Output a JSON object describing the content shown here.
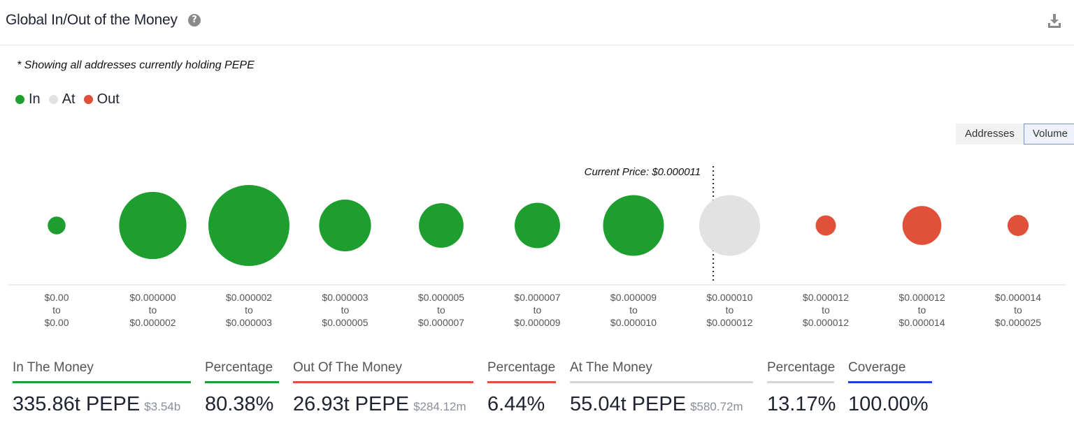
{
  "header": {
    "title": "Global In/Out of the Money",
    "help_icon": "question-circle-icon",
    "download_icon": "download-icon"
  },
  "note": "* Showing all addresses currently holding PEPE",
  "legend": [
    {
      "label": "In",
      "color": "#1e9e2e"
    },
    {
      "label": "At",
      "color": "#e2e2e2"
    },
    {
      "label": "Out",
      "color": "#e0503a"
    }
  ],
  "toggle": {
    "options": [
      "Addresses",
      "Volume"
    ],
    "selected": "Volume"
  },
  "chart_data": {
    "type": "bubble",
    "current_price_label": "Current Price: $0.000011",
    "current_price_position_between": [
      "$0.000009 to $0.000010",
      "$0.000010 to $0.000012"
    ],
    "bubble_size_metric": "Volume",
    "categories": [
      {
        "from": "$0.00",
        "to": "$0.00",
        "status": "In",
        "relative_size": 0.22
      },
      {
        "from": "$0.000000",
        "to": "$0.000002",
        "status": "In",
        "relative_size": 0.83
      },
      {
        "from": "$0.000002",
        "to": "$0.000003",
        "status": "In",
        "relative_size": 1.0
      },
      {
        "from": "$0.000003",
        "to": "$0.000005",
        "status": "In",
        "relative_size": 0.64
      },
      {
        "from": "$0.000005",
        "to": "$0.000007",
        "status": "In",
        "relative_size": 0.55
      },
      {
        "from": "$0.000007",
        "to": "$0.000009",
        "status": "In",
        "relative_size": 0.56
      },
      {
        "from": "$0.000009",
        "to": "$0.000010",
        "status": "In",
        "relative_size": 0.75
      },
      {
        "from": "$0.000010",
        "to": "$0.000012",
        "status": "At",
        "relative_size": 0.75
      },
      {
        "from": "$0.000012",
        "to": "$0.000012",
        "status": "Out",
        "relative_size": 0.25
      },
      {
        "from": "$0.000012",
        "to": "$0.000014",
        "status": "Out",
        "relative_size": 0.48
      },
      {
        "from": "$0.000014",
        "to": "$0.000025",
        "status": "Out",
        "relative_size": 0.26
      }
    ],
    "category_connector": "to",
    "colors": {
      "In": "#1e9e2e",
      "At": "#e2e2e2",
      "Out": "#e0503a"
    }
  },
  "stats": [
    {
      "label": "In The Money",
      "value": "335.86t PEPE",
      "sub": "$3.54b",
      "color": "#1e9e2e"
    },
    {
      "label": "Percentage",
      "value": "80.38%",
      "sub": "",
      "color": "#1e9e2e"
    },
    {
      "label": "Out Of The Money",
      "value": "26.93t PEPE",
      "sub": "$284.12m",
      "color": "#e0503a"
    },
    {
      "label": "Percentage",
      "value": "6.44%",
      "sub": "",
      "color": "#e0503a"
    },
    {
      "label": "At The Money",
      "value": "55.04t PEPE",
      "sub": "$580.72m",
      "color": "#d6d6d6"
    },
    {
      "label": "Percentage",
      "value": "13.17%",
      "sub": "",
      "color": "#d6d6d6"
    },
    {
      "label": "Coverage",
      "value": "100.00%",
      "sub": "",
      "color": "#1a3ee0"
    }
  ]
}
